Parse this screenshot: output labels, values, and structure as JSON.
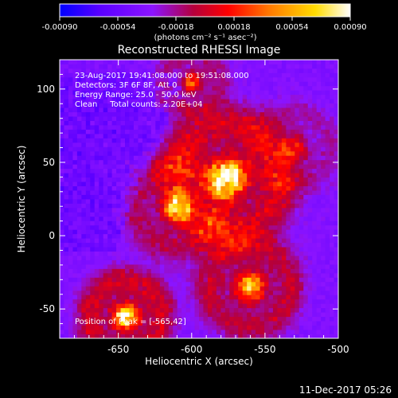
{
  "chart_data": {
    "type": "heatmap",
    "title": "Reconstructed RHESSI Image",
    "xlabel": "Heliocentric X (arcsec)",
    "ylabel": "Heliocentric Y (arcsec)",
    "xlim": [
      -690,
      -500
    ],
    "ylim": [
      -70,
      120
    ],
    "xticks": [
      -650,
      -600,
      -550,
      -500
    ],
    "xtick_labels": [
      "-650",
      "-600",
      "-550",
      "-500"
    ],
    "yticks": [
      -50,
      0,
      50,
      100
    ],
    "ytick_labels": [
      "-50",
      "0",
      "50",
      "100"
    ],
    "colorbar": {
      "range": [
        -0.0009,
        0.0009
      ],
      "ticks": [
        -0.0009,
        -0.00054,
        -0.00018,
        0.00018,
        0.00054,
        0.0009
      ],
      "tick_labels": [
        "-0.00090",
        "-0.00054",
        "-0.00018",
        "0.00018",
        "0.00054",
        "0.00090"
      ],
      "units_label": "(photons cm⁻² s⁻¹ asec⁻²)",
      "colormap": [
        "#0000ff",
        "#5a00ff",
        "#8c14ff",
        "#b4003c",
        "#ff0000",
        "#ff7800",
        "#ffdc00",
        "#ffffff"
      ]
    },
    "annotations": [
      "23-Aug-2017 19:41:08.000 to 19:51:08.000",
      "Detectors: 3F 6F 8F, Att 0",
      "Energy Range: 25.0 - 50.0 keV",
      "Clean     Total counts: 2.20E+04"
    ],
    "peak_label": "Position of Peak = [-565,42]",
    "peak": {
      "x": -565,
      "y": 42
    },
    "grid": false,
    "legend": "colorbar top"
  },
  "footer": {
    "timestamp": "11-Dec-2017 05:26"
  }
}
